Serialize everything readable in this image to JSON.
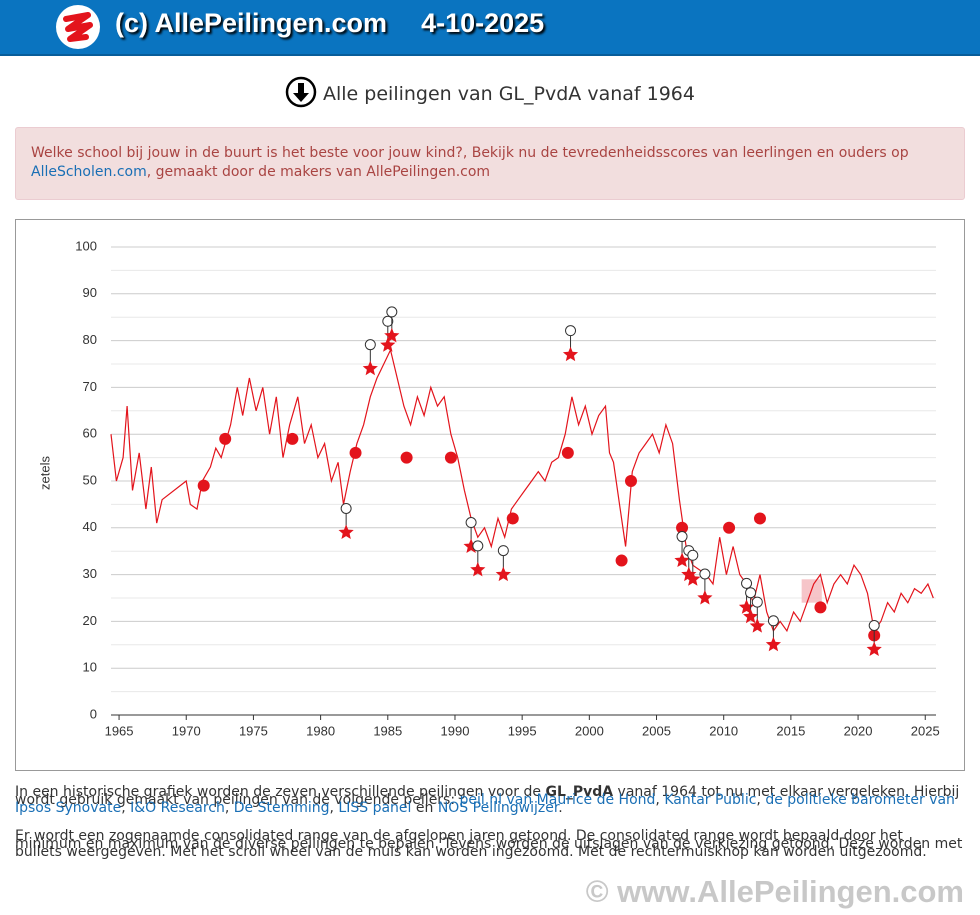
{
  "header": {
    "brand": "(c) AllePeilingen.com",
    "date": "4-10-2025"
  },
  "page_title": "Alle peilingen van GL_PvdA vanaf 1964",
  "banner": {
    "text": "Welke school bij jouw in de buurt is het beste voor jouw kind?, Bekijk nu de tevredenheidsscores van leerlingen en ouders op ",
    "link": "AlleScholen.com",
    "tail": ", gemaakt door de makers van AllePeilingen.com"
  },
  "chart_data": {
    "type": "line",
    "ylabel": "zetels",
    "xlim": [
      1964.4,
      2025.8
    ],
    "ylim": [
      0,
      100
    ],
    "xticks": [
      1965,
      1970,
      1975,
      1980,
      1985,
      1990,
      1995,
      2000,
      2005,
      2010,
      2015,
      2020,
      2025
    ],
    "yticks": [
      0,
      10,
      20,
      30,
      40,
      50,
      60,
      70,
      80,
      90,
      100
    ],
    "grid": true,
    "consolidated_range": {
      "x": [
        2015.8,
        2017.3
      ],
      "y": [
        24,
        29
      ],
      "color": "#f4b6bb"
    },
    "series": [
      {
        "marker": "line",
        "color": "#e3141c",
        "x": [
          1964.4,
          1964.8,
          1965.3,
          1965.6,
          1966,
          1966.5,
          1967,
          1967.4,
          1967.8,
          1968.2,
          1970,
          1970.3,
          1970.8,
          1971.2,
          1971.8,
          1972.2,
          1972.6,
          1973.3,
          1973.8,
          1974.2,
          1974.7,
          1975.2,
          1975.7,
          1976.2,
          1976.7,
          1977.2,
          1977.7,
          1978.3,
          1978.8,
          1979.3,
          1979.8,
          1980.3,
          1980.8,
          1981.3,
          1981.7,
          1982.2,
          1982.7,
          1983.2,
          1983.7,
          1984.2,
          1984.7,
          1985.2,
          1985.7,
          1986.2,
          1986.7,
          1987.2,
          1987.7,
          1988.2,
          1988.7,
          1989.2,
          1989.7,
          1990.2,
          1990.7,
          1991.2,
          1991.7,
          1992.2,
          1992.7,
          1993.2,
          1993.7,
          1994.2,
          1994.7,
          1995.2,
          1995.7,
          1996.2,
          1996.7,
          1997.2,
          1997.7,
          1998.2,
          1998.7,
          1999.2,
          1999.7,
          2000.2,
          2000.7,
          2001.2,
          2001.5,
          2001.8,
          2002.3,
          2002.7,
          2003.2,
          2003.7,
          2004.2,
          2004.7,
          2005.2,
          2005.7,
          2006.2,
          2006.7,
          2007.2,
          2007.7,
          2008.2,
          2008.7,
          2009.2,
          2009.7,
          2010.2,
          2010.7,
          2011.2,
          2011.7,
          2012.2,
          2012.7,
          2013.2,
          2013.7,
          2014.2,
          2014.7,
          2015.2,
          2015.7,
          2016.2,
          2016.7,
          2017.2,
          2017.7,
          2018.2,
          2018.7,
          2019.2,
          2019.7,
          2020.2,
          2020.7,
          2021.2,
          2021.7,
          2022.2,
          2022.7,
          2023.2,
          2023.7,
          2024.2,
          2024.7,
          2025.2,
          2025.6
        ],
        "values": [
          60,
          50,
          55,
          66,
          48,
          56,
          44,
          53,
          41,
          46,
          50,
          45,
          44,
          50,
          53,
          57,
          55,
          62,
          70,
          64,
          72,
          65,
          70,
          60,
          68,
          55,
          62,
          68,
          58,
          62,
          55,
          58,
          50,
          54,
          45,
          52,
          58,
          62,
          68,
          72,
          75,
          78,
          72,
          66,
          62,
          68,
          64,
          70,
          66,
          68,
          60,
          55,
          48,
          42,
          38,
          40,
          36,
          42,
          38,
          44,
          46,
          48,
          50,
          52,
          50,
          54,
          55,
          60,
          68,
          62,
          66,
          60,
          64,
          66,
          56,
          54,
          44,
          36,
          52,
          56,
          58,
          60,
          56,
          62,
          58,
          46,
          36,
          32,
          31,
          30,
          28,
          38,
          30,
          36,
          30,
          28,
          24,
          30,
          22,
          18,
          20,
          18,
          22,
          20,
          24,
          28,
          30,
          24,
          28,
          30,
          28,
          32,
          30,
          26,
          18,
          20,
          24,
          22,
          26,
          24,
          27,
          26,
          28,
          25
        ]
      },
      {
        "marker": "circle",
        "color": "#e3141c",
        "x": [
          1971.3,
          1972.9,
          1977.9,
          1982.6,
          1986.4,
          1989.7,
          1994.3,
          1998.4,
          2002.4,
          2003.1,
          2006.9,
          2010.4,
          2012.7,
          2017.2,
          2021.2
        ],
        "values": [
          49,
          59,
          59,
          56,
          55,
          55,
          42,
          56,
          33,
          50,
          40,
          40,
          42,
          23,
          17
        ]
      },
      {
        "marker": "star",
        "color": "#e3141c",
        "x": [
          1981.9,
          1983.7,
          1985.0,
          1985.3,
          1991.2,
          1991.7,
          1993.6,
          1998.6,
          2006.9,
          2007.4,
          2007.7,
          2008.6,
          2011.7,
          2012.0,
          2012.5,
          2013.7,
          2021.2
        ],
        "values": [
          39,
          74,
          79,
          81,
          36,
          31,
          30,
          77,
          33,
          30,
          29,
          25,
          23,
          21,
          19,
          15,
          14
        ]
      }
    ]
  },
  "footer": {
    "p1": [
      "In een historische grafiek worden de zeven verschillende peilingen voor de ",
      "GL_PvdA",
      " vanaf 1964 tot nu met elkaar vergeleken. Hierbij wordt gebruik gemaakt van peilingen van de volgende peilers: ",
      "peil.nl van Maurice de Hond",
      ", ",
      "Kantar Public",
      ", ",
      "de politieke barometer van Ipsos Synovate",
      ", ",
      "I&O Research",
      ", ",
      "De Stemming",
      ", ",
      "LISS panel",
      " en ",
      "NOS Peilingwijzer",
      "."
    ],
    "p2": "Er wordt een zogenaamde consolidated range van de afgelopen jaren getoond. De consolidated range wordt bepaald door het minimum en maximum van de diverse peilingen te bepalen. Tevens worden de uitslagen van de verkiezing getoond. Deze worden met bullets weergegeven. Met het scroll wheel van de muis kan worden ingezoomd. Met de rechtermuisknop kan worden uitgezoomd."
  },
  "watermark": "© www.AllePeilingen.com"
}
